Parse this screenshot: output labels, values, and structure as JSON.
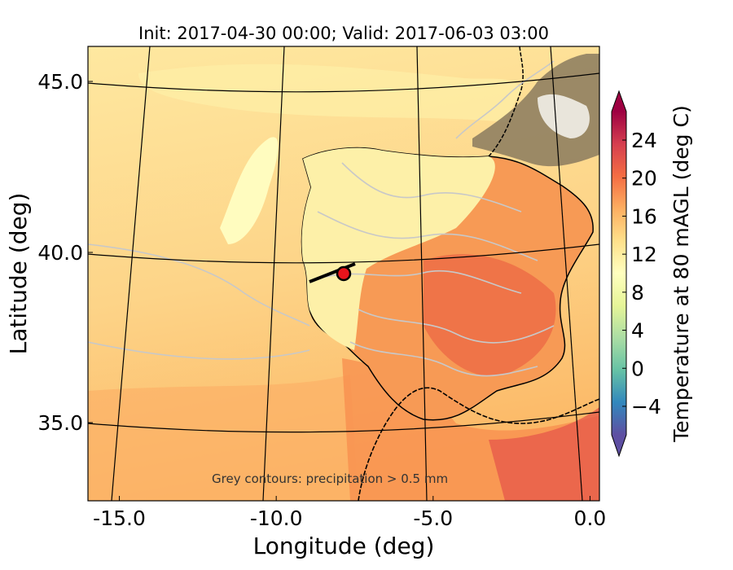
{
  "title": "Init: 2017-04-30 00:00; Valid: 2017-06-03 03:00",
  "xlabel": "Longitude (deg)",
  "ylabel": "Latitude (deg)",
  "xticks": [
    "-15.0",
    "-10.0",
    "-5.0",
    "0.0"
  ],
  "yticks": [
    "45.0",
    "40.0",
    "35.0"
  ],
  "annotation": "Grey contours: precipitation  > 0.5 mm",
  "colorbar": {
    "label": "Temperature at 80 mAGL (deg C)",
    "ticks": [
      "24",
      "20",
      "16",
      "12",
      "8",
      "4",
      "0",
      "−4"
    ],
    "range": [
      -7,
      27
    ],
    "colors": [
      "#5e4fa2",
      "#3288bd",
      "#66c2a5",
      "#abdda4",
      "#e6f598",
      "#ffffbf",
      "#fee08b",
      "#fdae61",
      "#f46d43",
      "#d53e4f",
      "#9e0142"
    ]
  },
  "marker": {
    "lon": -7.6,
    "lat": 39.4,
    "color": "#e8141c"
  },
  "chart_data": {
    "type": "heatmap",
    "title": "Init: 2017-04-30 00:00; Valid: 2017-06-03 03:00",
    "xlabel": "Longitude (deg)",
    "ylabel": "Latitude (deg)",
    "xlim": [
      -16,
      0.3
    ],
    "ylim": [
      32.5,
      46
    ],
    "xticks": [
      -15,
      -10,
      -5,
      0
    ],
    "yticks": [
      35,
      40,
      45
    ],
    "variable": "Temperature at 80 mAGL (deg C)",
    "color_range": [
      -7,
      27
    ],
    "contours": "precipitation > 0.5 mm",
    "marker": {
      "lon": -7.6,
      "lat": 39.4
    },
    "grid": true
  }
}
